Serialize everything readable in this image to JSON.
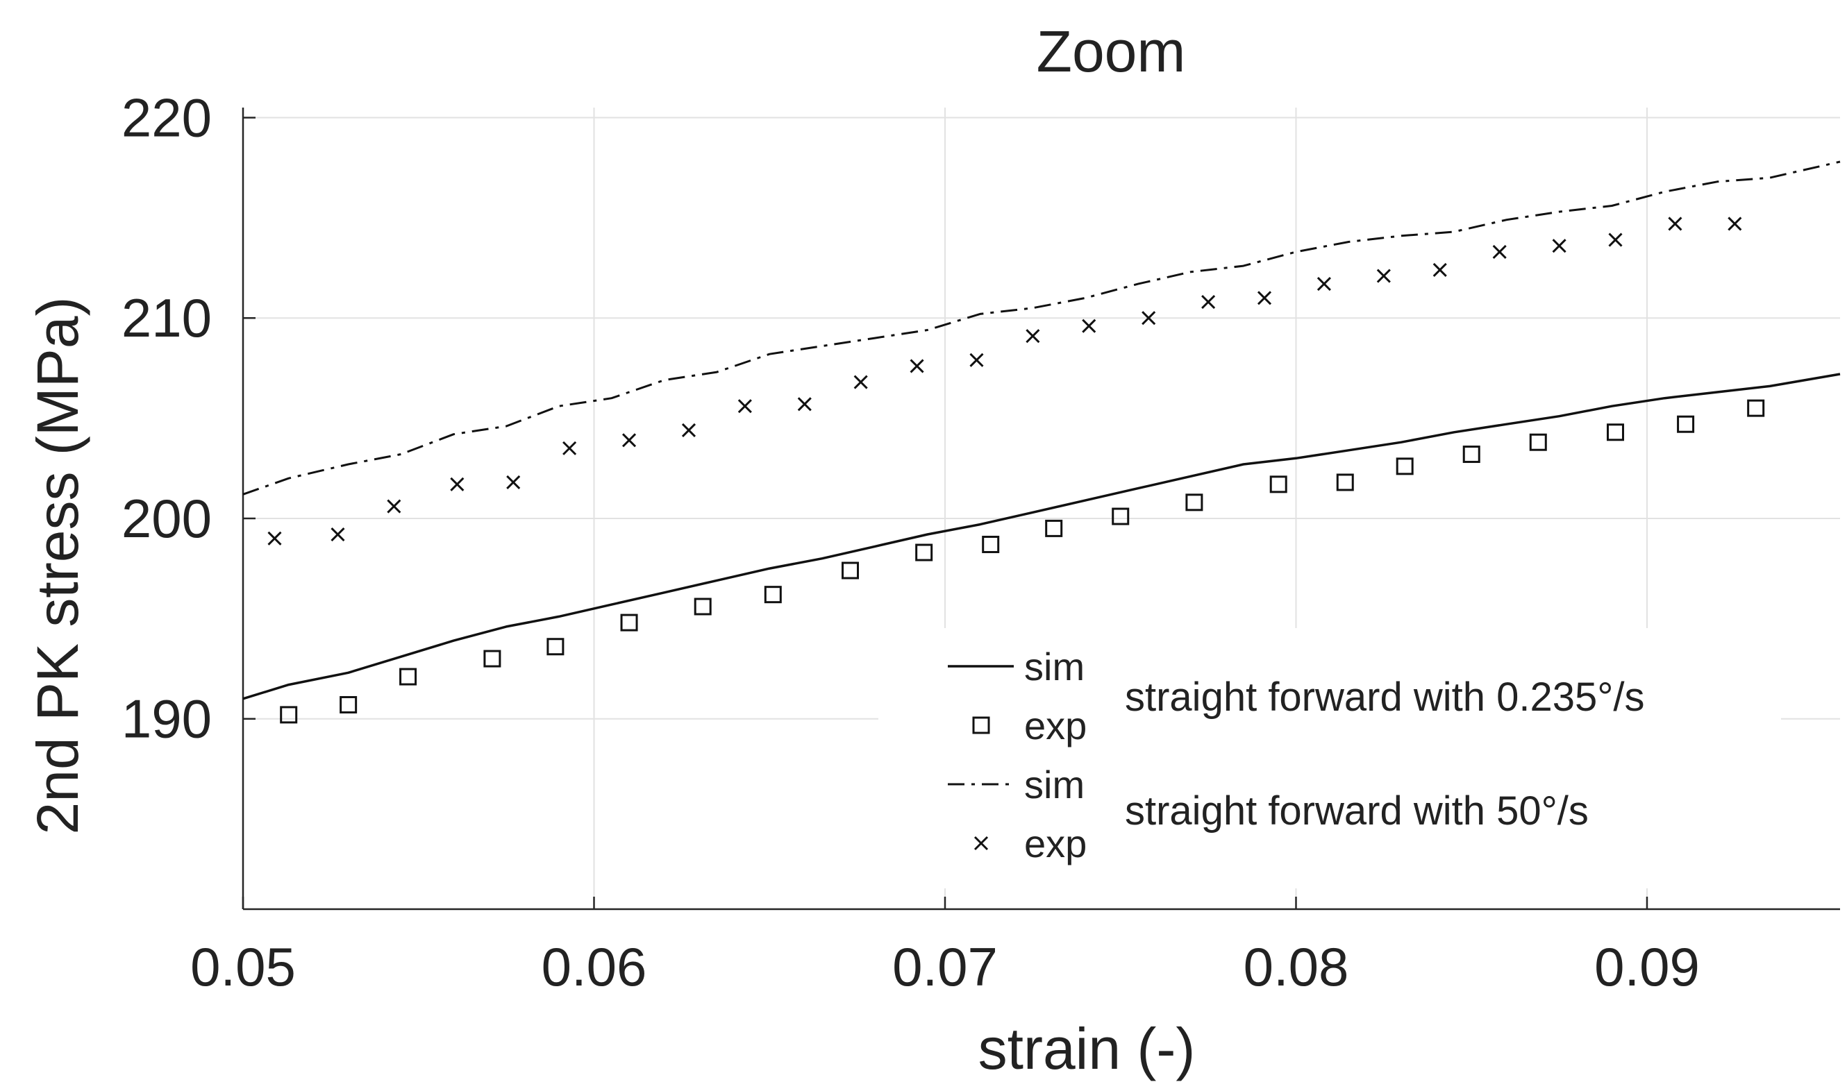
{
  "chart_data": {
    "type": "line",
    "title": "Zoom",
    "xlabel": "strain (-)",
    "ylabel": "2nd PK stress (MPa)",
    "xlim": [
      0.05,
      0.0955
    ],
    "ylim": [
      180.5,
      220.5
    ],
    "xticks": [
      0.05,
      0.06,
      0.07,
      0.08,
      0.09
    ],
    "xtick_labels": [
      "0.05",
      "0.06",
      "0.07",
      "0.08",
      "0.09"
    ],
    "yticks": [
      190,
      200,
      210,
      220
    ],
    "ytick_labels": [
      "190",
      "200",
      "210",
      "220"
    ],
    "grid": true,
    "legend_position": "lower-right",
    "series": [
      {
        "name": "sim",
        "group": "straight forward with 0.235°/s",
        "style": "solid",
        "x": [
          0.05,
          0.0513,
          0.053,
          0.0545,
          0.056,
          0.0575,
          0.059,
          0.0605,
          0.062,
          0.0635,
          0.065,
          0.0665,
          0.068,
          0.0695,
          0.071,
          0.0725,
          0.074,
          0.0755,
          0.077,
          0.0785,
          0.08,
          0.0815,
          0.083,
          0.0845,
          0.086,
          0.0875,
          0.089,
          0.0905,
          0.092,
          0.0935,
          0.0955
        ],
        "y": [
          191.0,
          191.7,
          192.3,
          193.1,
          193.9,
          194.6,
          195.1,
          195.7,
          196.3,
          196.9,
          197.5,
          198.0,
          198.6,
          199.2,
          199.7,
          200.3,
          200.9,
          201.5,
          202.1,
          202.7,
          203.0,
          203.4,
          203.8,
          204.3,
          204.7,
          205.1,
          205.6,
          206.0,
          206.3,
          206.6,
          207.2
        ]
      },
      {
        "name": "exp",
        "group": "straight forward with 0.235°/s",
        "marker": "square",
        "x": [
          0.0513,
          0.053,
          0.0547,
          0.0571,
          0.0589,
          0.061,
          0.0631,
          0.0651,
          0.0673,
          0.0694,
          0.0713,
          0.0731,
          0.075,
          0.0771,
          0.0795,
          0.0814,
          0.0831,
          0.085,
          0.0869,
          0.0891,
          0.0911,
          0.0931
        ],
        "y": [
          190.2,
          190.7,
          192.1,
          193.0,
          193.6,
          194.8,
          195.6,
          196.2,
          197.4,
          198.3,
          198.7,
          199.5,
          200.1,
          200.8,
          201.7,
          201.8,
          202.6,
          203.2,
          203.8,
          204.3,
          204.7,
          205.5
        ]
      },
      {
        "name": "sim",
        "group": "straight forward with 50°/s",
        "style": "dash-dot",
        "x": [
          0.05,
          0.0513,
          0.053,
          0.0545,
          0.056,
          0.0575,
          0.059,
          0.0605,
          0.062,
          0.0635,
          0.065,
          0.0665,
          0.068,
          0.0695,
          0.071,
          0.0725,
          0.074,
          0.0755,
          0.077,
          0.0785,
          0.08,
          0.0815,
          0.083,
          0.0845,
          0.086,
          0.0875,
          0.089,
          0.0905,
          0.092,
          0.0935,
          0.0955
        ],
        "y": [
          201.2,
          202.0,
          202.7,
          203.2,
          204.2,
          204.6,
          205.6,
          206.0,
          206.9,
          207.3,
          208.2,
          208.6,
          209.0,
          209.4,
          210.2,
          210.5,
          211.0,
          211.7,
          212.3,
          212.6,
          213.3,
          213.8,
          214.1,
          214.3,
          214.9,
          215.3,
          215.6,
          216.3,
          216.8,
          217.0,
          217.8
        ]
      },
      {
        "name": "exp",
        "group": "straight forward with 50°/s",
        "marker": "x",
        "x": [
          0.0509,
          0.0527,
          0.0543,
          0.0561,
          0.0577,
          0.0593,
          0.061,
          0.0627,
          0.0643,
          0.066,
          0.0676,
          0.0692,
          0.0709,
          0.0725,
          0.0741,
          0.0758,
          0.0775,
          0.0791,
          0.0808,
          0.0825,
          0.0841,
          0.0858,
          0.0875,
          0.0891,
          0.0908,
          0.0925
        ],
        "y": [
          199.0,
          199.2,
          200.6,
          201.7,
          201.8,
          203.5,
          203.9,
          204.4,
          205.6,
          205.7,
          206.8,
          207.6,
          207.9,
          209.1,
          209.6,
          210.0,
          210.8,
          211.0,
          211.7,
          212.1,
          212.4,
          213.3,
          213.6,
          213.9,
          214.7,
          214.7
        ]
      }
    ],
    "legend": {
      "entries": [
        {
          "label": "sim",
          "style": "solid"
        },
        {
          "label": "exp",
          "marker": "square"
        },
        {
          "label": "sim",
          "style": "dash-dot"
        },
        {
          "label": "exp",
          "marker": "x"
        }
      ],
      "groups": [
        "straight forward with 0.235°/s",
        "straight forward with 50°/s"
      ]
    }
  }
}
